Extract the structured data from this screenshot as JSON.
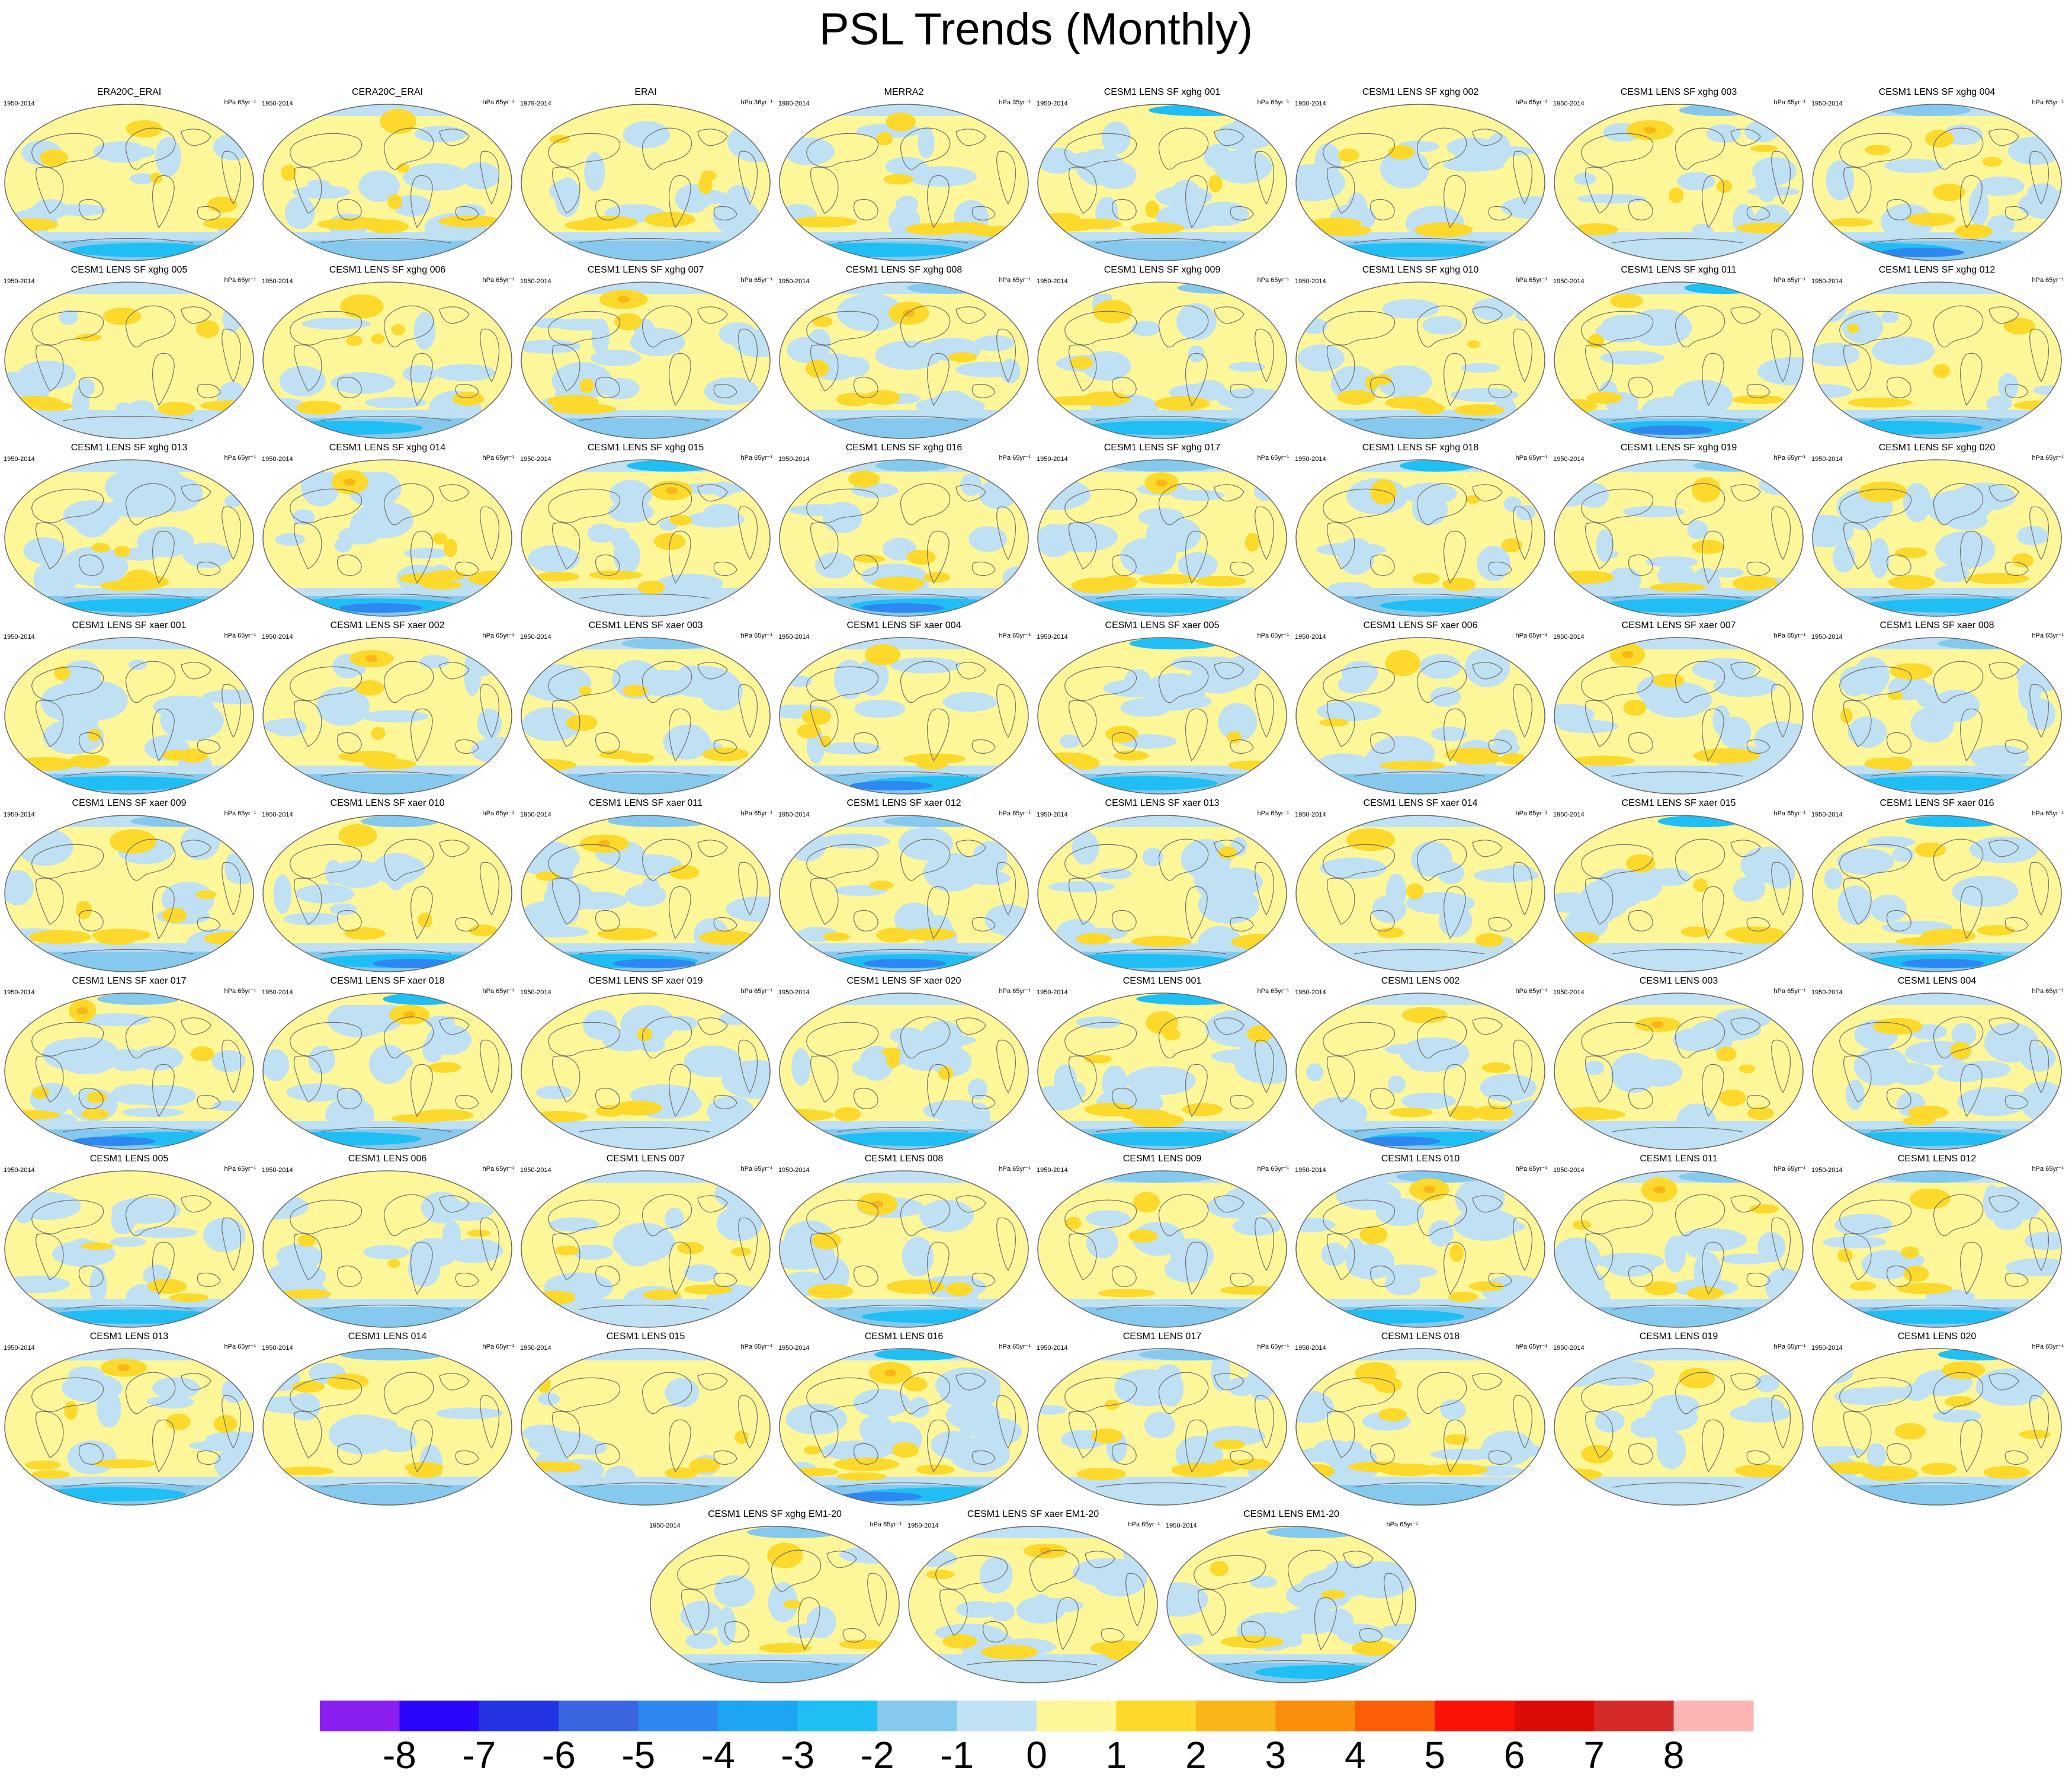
{
  "title": "PSL Trends (Monthly)",
  "chart_data": {
    "type": "heatmap",
    "description_kind": "panel grid of global map contour plots",
    "colors": {
      "levels": [
        "#8a1ff0",
        "#2a06fb",
        "#2234e3",
        "#3a66df",
        "#2e88f1",
        "#1da4f3",
        "#1fbff5",
        "#85c9ee",
        "#bfe1f3",
        "#fef79a",
        "#fcd92b",
        "#fab618",
        "#fb8f0c",
        "#fb5f06",
        "#fa1108",
        "#db0b06",
        "#d52a2a",
        "#fdb4b4"
      ],
      "background": "#ffffff",
      "coast": "#6f6f6f"
    },
    "colorbar": {
      "labels": [
        "-8",
        "-7",
        "-6",
        "-5",
        "-4",
        "-3",
        "-2",
        "-1",
        "0",
        "1",
        "2",
        "3",
        "4",
        "5",
        "6",
        "7",
        "8"
      ]
    },
    "panels": [
      {
        "title": "ERA20C_ERAI",
        "years": "1950-2014",
        "units": "hPa 65yr⁻¹"
      },
      {
        "title": "CERA20C_ERAI",
        "years": "1950-2014",
        "units": "hPa 65yr⁻¹"
      },
      {
        "title": "ERAI",
        "years": "1979-2014",
        "units": "hPa 36yr⁻¹"
      },
      {
        "title": "MERRA2",
        "years": "1980-2014",
        "units": "hPa 35yr⁻¹"
      },
      {
        "title": "CESM1 LENS SF xghg 001",
        "years": "1950-2014",
        "units": "hPa 65yr⁻¹"
      },
      {
        "title": "CESM1 LENS SF xghg 002",
        "years": "1950-2014",
        "units": "hPa 65yr⁻¹"
      },
      {
        "title": "CESM1 LENS SF xghg 003",
        "years": "1950-2014",
        "units": "hPa 65yr⁻¹"
      },
      {
        "title": "CESM1 LENS SF xghg 004",
        "years": "1950-2014",
        "units": "hPa 65yr⁻¹"
      },
      {
        "title": "CESM1 LENS SF xghg 005",
        "years": "1950-2014",
        "units": "hPa 65yr⁻¹"
      },
      {
        "title": "CESM1 LENS SF xghg 006",
        "years": "1950-2014",
        "units": "hPa 65yr⁻¹"
      },
      {
        "title": "CESM1 LENS SF xghg 007",
        "years": "1950-2014",
        "units": "hPa 65yr⁻¹"
      },
      {
        "title": "CESM1 LENS SF xghg 008",
        "years": "1950-2014",
        "units": "hPa 65yr⁻¹"
      },
      {
        "title": "CESM1 LENS SF xghg 009",
        "years": "1950-2014",
        "units": "hPa 65yr⁻¹"
      },
      {
        "title": "CESM1 LENS SF xghg 010",
        "years": "1950-2014",
        "units": "hPa 65yr⁻¹"
      },
      {
        "title": "CESM1 LENS SF xghg 011",
        "years": "1950-2014",
        "units": "hPa 65yr⁻¹"
      },
      {
        "title": "CESM1 LENS SF xghg 012",
        "years": "1950-2014",
        "units": "hPa 65yr⁻¹"
      },
      {
        "title": "CESM1 LENS SF xghg 013",
        "years": "1950-2014",
        "units": "hPa 65yr⁻¹"
      },
      {
        "title": "CESM1 LENS SF xghg 014",
        "years": "1950-2014",
        "units": "hPa 65yr⁻¹"
      },
      {
        "title": "CESM1 LENS SF xghg 015",
        "years": "1950-2014",
        "units": "hPa 65yr⁻¹"
      },
      {
        "title": "CESM1 LENS SF xghg 016",
        "years": "1950-2014",
        "units": "hPa 65yr⁻¹"
      },
      {
        "title": "CESM1 LENS SF xghg 017",
        "years": "1950-2014",
        "units": "hPa 65yr⁻¹"
      },
      {
        "title": "CESM1 LENS SF xghg 018",
        "years": "1950-2014",
        "units": "hPa 65yr⁻¹"
      },
      {
        "title": "CESM1 LENS SF xghg 019",
        "years": "1950-2014",
        "units": "hPa 65yr⁻¹"
      },
      {
        "title": "CESM1 LENS SF xghg 020",
        "years": "1950-2014",
        "units": "hPa 65yr⁻¹"
      },
      {
        "title": "CESM1 LENS SF xaer 001",
        "years": "1950-2014",
        "units": "hPa 65yr⁻¹"
      },
      {
        "title": "CESM1 LENS SF xaer 002",
        "years": "1950-2014",
        "units": "hPa 65yr⁻¹"
      },
      {
        "title": "CESM1 LENS SF xaer 003",
        "years": "1950-2014",
        "units": "hPa 65yr⁻¹"
      },
      {
        "title": "CESM1 LENS SF xaer 004",
        "years": "1950-2014",
        "units": "hPa 65yr⁻¹"
      },
      {
        "title": "CESM1 LENS SF xaer 005",
        "years": "1950-2014",
        "units": "hPa 65yr⁻¹"
      },
      {
        "title": "CESM1 LENS SF xaer 006",
        "years": "1950-2014",
        "units": "hPa 65yr⁻¹"
      },
      {
        "title": "CESM1 LENS SF xaer 007",
        "years": "1950-2014",
        "units": "hPa 65yr⁻¹"
      },
      {
        "title": "CESM1 LENS SF xaer 008",
        "years": "1950-2014",
        "units": "hPa 65yr⁻¹"
      },
      {
        "title": "CESM1 LENS SF xaer 009",
        "years": "1950-2014",
        "units": "hPa 65yr⁻¹"
      },
      {
        "title": "CESM1 LENS SF xaer 010",
        "years": "1950-2014",
        "units": "hPa 65yr⁻¹"
      },
      {
        "title": "CESM1 LENS SF xaer 011",
        "years": "1950-2014",
        "units": "hPa 65yr⁻¹"
      },
      {
        "title": "CESM1 LENS SF xaer 012",
        "years": "1950-2014",
        "units": "hPa 65yr⁻¹"
      },
      {
        "title": "CESM1 LENS SF xaer 013",
        "years": "1950-2014",
        "units": "hPa 65yr⁻¹"
      },
      {
        "title": "CESM1 LENS SF xaer 014",
        "years": "1950-2014",
        "units": "hPa 65yr⁻¹"
      },
      {
        "title": "CESM1 LENS SF xaer 015",
        "years": "1950-2014",
        "units": "hPa 65yr⁻¹"
      },
      {
        "title": "CESM1 LENS SF xaer 016",
        "years": "1950-2014",
        "units": "hPa 65yr⁻¹"
      },
      {
        "title": "CESM1 LENS SF xaer 017",
        "years": "1950-2014",
        "units": "hPa 65yr⁻¹"
      },
      {
        "title": "CESM1 LENS SF xaer 018",
        "years": "1950-2014",
        "units": "hPa 65yr⁻¹"
      },
      {
        "title": "CESM1 LENS SF xaer 019",
        "years": "1950-2014",
        "units": "hPa 65yr⁻¹"
      },
      {
        "title": "CESM1 LENS SF xaer 020",
        "years": "1950-2014",
        "units": "hPa 65yr⁻¹"
      },
      {
        "title": "CESM1 LENS 001",
        "years": "1950-2014",
        "units": "hPa 65yr⁻¹"
      },
      {
        "title": "CESM1 LENS 002",
        "years": "1950-2014",
        "units": "hPa 65yr⁻¹"
      },
      {
        "title": "CESM1 LENS 003",
        "years": "1950-2014",
        "units": "hPa 65yr⁻¹"
      },
      {
        "title": "CESM1 LENS 004",
        "years": "1950-2014",
        "units": "hPa 65yr⁻¹"
      },
      {
        "title": "CESM1 LENS 005",
        "years": "1950-2014",
        "units": "hPa 65yr⁻¹"
      },
      {
        "title": "CESM1 LENS 006",
        "years": "1950-2014",
        "units": "hPa 65yr⁻¹"
      },
      {
        "title": "CESM1 LENS 007",
        "years": "1950-2014",
        "units": "hPa 65yr⁻¹"
      },
      {
        "title": "CESM1 LENS 008",
        "years": "1950-2014",
        "units": "hPa 65yr⁻¹"
      },
      {
        "title": "CESM1 LENS 009",
        "years": "1950-2014",
        "units": "hPa 65yr⁻¹"
      },
      {
        "title": "CESM1 LENS 010",
        "years": "1950-2014",
        "units": "hPa 65yr⁻¹"
      },
      {
        "title": "CESM1 LENS 011",
        "years": "1950-2014",
        "units": "hPa 65yr⁻¹"
      },
      {
        "title": "CESM1 LENS 012",
        "years": "1950-2014",
        "units": "hPa 65yr⁻¹"
      },
      {
        "title": "CESM1 LENS 013",
        "years": "1950-2014",
        "units": "hPa 65yr⁻¹"
      },
      {
        "title": "CESM1 LENS 014",
        "years": "1950-2014",
        "units": "hPa 65yr⁻¹"
      },
      {
        "title": "CESM1 LENS 015",
        "years": "1950-2014",
        "units": "hPa 65yr⁻¹"
      },
      {
        "title": "CESM1 LENS 016",
        "years": "1950-2014",
        "units": "hPa 65yr⁻¹"
      },
      {
        "title": "CESM1 LENS 017",
        "years": "1950-2014",
        "units": "hPa 65yr⁻¹"
      },
      {
        "title": "CESM1 LENS 018",
        "years": "1950-2014",
        "units": "hPa 65yr⁻¹"
      },
      {
        "title": "CESM1 LENS 019",
        "years": "1950-2014",
        "units": "hPa 65yr⁻¹"
      },
      {
        "title": "CESM1 LENS 020",
        "years": "1950-2014",
        "units": "hPa 65yr⁻¹"
      },
      {
        "title": "CESM1 LENS SF xghg EM1-20",
        "years": "1950-2014",
        "units": "hPa 65yr⁻¹"
      },
      {
        "title": "CESM1 LENS SF xaer EM1-20",
        "years": "1950-2014",
        "units": "hPa 65yr⁻¹"
      },
      {
        "title": "CESM1 LENS EM1-20",
        "years": "1950-2014",
        "units": "hPa 65yr⁻¹"
      }
    ]
  }
}
